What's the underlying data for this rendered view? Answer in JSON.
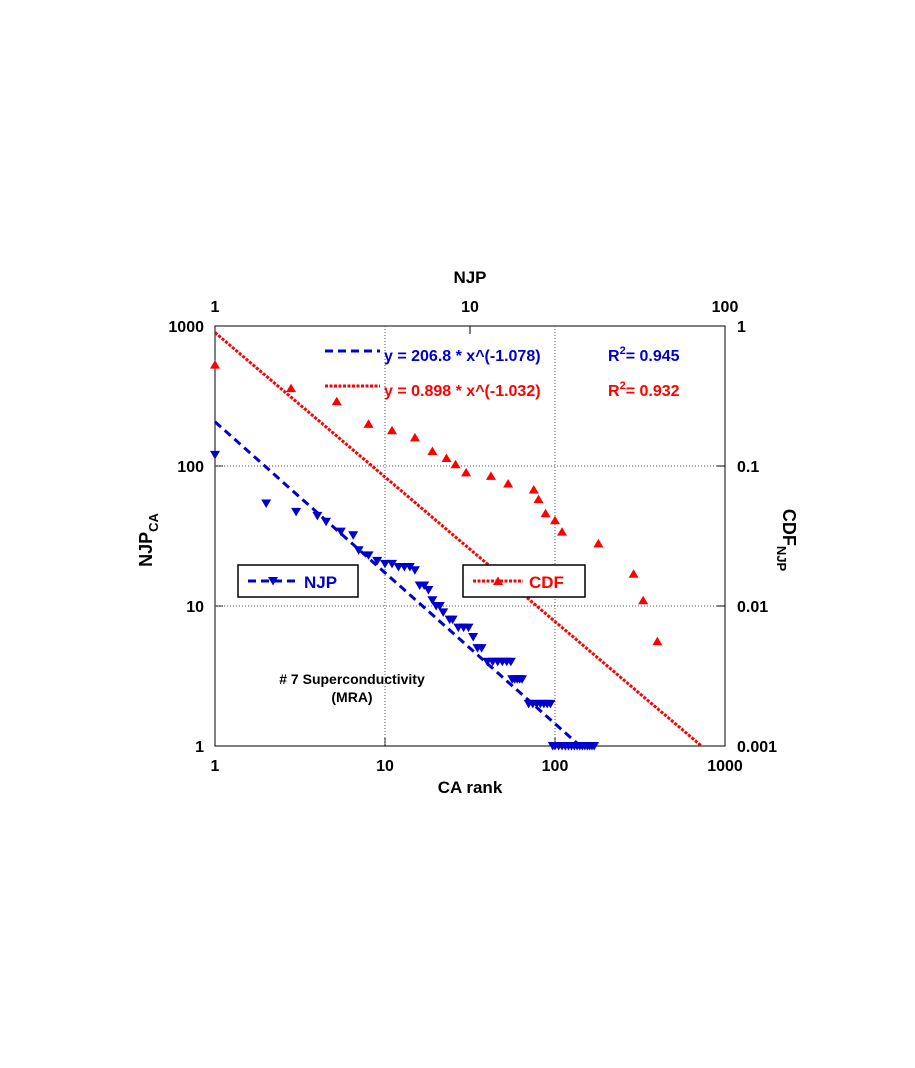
{
  "chart_data": {
    "type": "scatter",
    "xlabel": "CA  rank",
    "x2label": "NJP",
    "ylabel": "NJP",
    "ylabel_sub": "CA",
    "y2label": "CDF",
    "y2label_sub": "NJP",
    "log_x": true,
    "log_y": true,
    "grid": true,
    "xlim": [
      1,
      1000
    ],
    "xticks": [
      1,
      10,
      100,
      1000
    ],
    "x2lim": [
      1,
      100
    ],
    "x2ticks": [
      1,
      10,
      100
    ],
    "ylim": [
      1,
      1000
    ],
    "yticks": [
      1,
      10,
      100,
      1000
    ],
    "y2lim": [
      0.001,
      1
    ],
    "y2ticks": [
      0.001,
      0.01,
      0.1,
      1
    ],
    "series": [
      {
        "name": "NJP",
        "color": "#0000cc",
        "marker": "down-triangle",
        "x": [
          1,
          2,
          3,
          4,
          4.5,
          5.5,
          6.5,
          7,
          8,
          9,
          10,
          11,
          12,
          13,
          14,
          15,
          16,
          17,
          18,
          19,
          20,
          21,
          22,
          24,
          25,
          27,
          29,
          31,
          33,
          35,
          37,
          40,
          43,
          46,
          49,
          52,
          55,
          56,
          58,
          60,
          62,
          64,
          70,
          74,
          78,
          82,
          86,
          90,
          94,
          97,
          100,
          105,
          110,
          115,
          120,
          125,
          130,
          135,
          140,
          145,
          150,
          155,
          160,
          165,
          170
        ],
        "values": [
          120,
          54,
          47,
          44,
          40,
          34,
          32,
          25,
          23,
          21,
          20,
          20,
          19,
          19,
          19,
          18,
          14,
          14,
          13,
          11,
          10,
          10,
          9,
          8,
          8,
          7,
          7,
          7,
          6,
          5,
          5,
          4,
          4,
          4,
          4,
          4,
          4,
          3,
          3,
          3,
          3,
          3,
          2,
          2,
          2,
          2,
          2,
          2,
          2,
          1,
          1,
          1,
          1,
          1,
          1,
          1,
          1,
          1,
          1,
          1,
          1,
          1,
          1,
          1,
          1
        ]
      },
      {
        "name": "CDF",
        "color": "#ff0000",
        "marker": "up-triangle",
        "axis": "y2",
        "x": [
          1,
          2.8,
          5.2,
          8,
          11,
          15,
          19,
          23,
          26,
          30,
          42,
          53,
          75,
          80,
          88,
          100,
          110,
          180,
          290,
          330,
          400
        ],
        "values": [
          0.53,
          0.36,
          0.29,
          0.2,
          0.18,
          0.16,
          0.128,
          0.114,
          0.103,
          0.09,
          0.085,
          0.075,
          0.068,
          0.058,
          0.046,
          0.041,
          0.034,
          0.028,
          0.017,
          0.011,
          0.0056
        ]
      }
    ],
    "fits": [
      {
        "a": 206.8,
        "b": -1.078,
        "equation": "y = 206.8 * x^(-1.078)",
        "r2_symbol": "R",
        "r2_power": "2",
        "r2_value": "= 0.945"
      },
      {
        "a": 0.898,
        "b": -1.032,
        "equation": "y = 0.898 * x^(-1.032)",
        "r2_symbol": "R",
        "r2_power": "2",
        "r2_value": "= 0.932"
      }
    ],
    "annotation": [
      "# 7 Superconductivity",
      "(MRA)"
    ]
  }
}
